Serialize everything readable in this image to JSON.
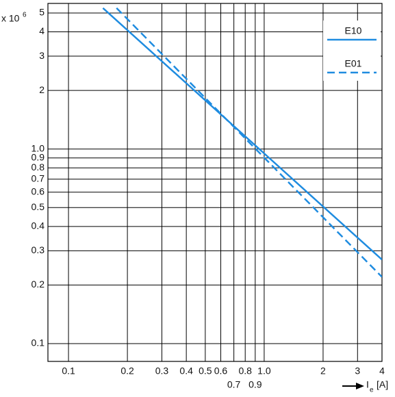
{
  "chart_data": {
    "type": "line",
    "y_label": "x 10",
    "y_label_exponent": "6",
    "x_label": "I",
    "x_label_subscript": "e",
    "x_label_unit": "[A]",
    "log_x": true,
    "log_y": true,
    "grid": true,
    "legend": "upper right",
    "xlim": [
      0.0785,
      4.0
    ],
    "ylim": [
      0.081,
      5.6
    ],
    "xticks": [
      0.1,
      0.2,
      0.3,
      0.4,
      0.5,
      0.6,
      0.7,
      0.8,
      0.9,
      {
        "value": 1,
        "label": "1.0"
      },
      2,
      3,
      4
    ],
    "yticks": [
      0.1,
      0.2,
      0.3,
      0.4,
      0.5,
      0.6,
      0.7,
      0.8,
      0.9,
      {
        "value": 1,
        "label": "1.0"
      },
      2,
      3,
      4,
      5
    ],
    "series": [
      {
        "name": "E10",
        "color": "#1f8ce0",
        "dash": false,
        "x": [
          0.15,
          4.0
        ],
        "values": [
          5.3,
          0.27
        ]
      },
      {
        "name": "E01",
        "color": "#1f8ce0",
        "dash": true,
        "x": [
          0.176,
          4.0
        ],
        "values": [
          5.3,
          0.22
        ]
      }
    ]
  }
}
